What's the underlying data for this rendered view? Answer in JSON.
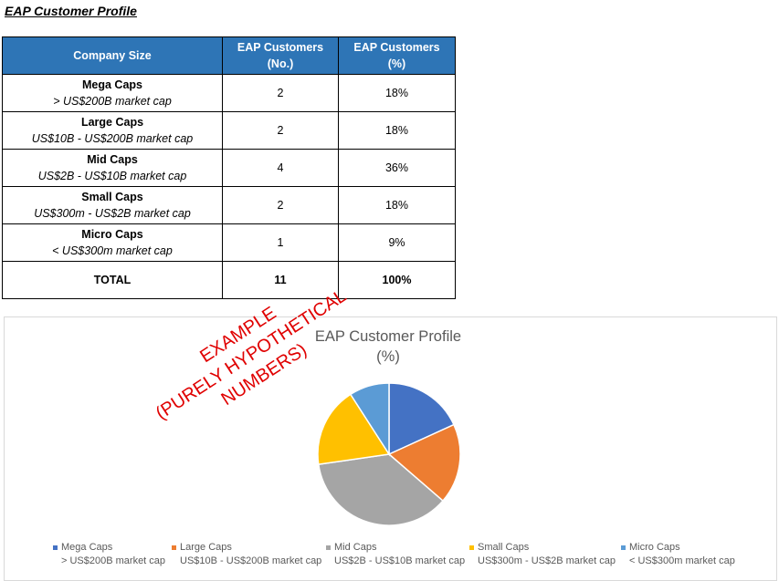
{
  "page_title": "EAP Customer Profile",
  "table": {
    "headers": {
      "size": "Company Size",
      "no_line1": "EAP Customers",
      "no_line2": "(No.)",
      "pct_line1": "EAP Customers",
      "pct_line2": "(%)"
    },
    "rows": [
      {
        "name": "Mega Caps",
        "desc": "> US$200B market cap",
        "count": "2",
        "pct": "18%"
      },
      {
        "name": "Large Caps",
        "desc": "US$10B - US$200B market cap",
        "count": "2",
        "pct": "18%"
      },
      {
        "name": "Mid Caps",
        "desc": "US$2B - US$10B market cap",
        "count": "4",
        "pct": "36%"
      },
      {
        "name": "Small Caps",
        "desc": "US$300m - US$2B market cap",
        "count": "2",
        "pct": "18%"
      },
      {
        "name": "Micro Caps",
        "desc": "< US$300m market cap",
        "count": "1",
        "pct": "9%"
      }
    ],
    "total": {
      "label": "TOTAL",
      "count": "11",
      "pct": "100%"
    }
  },
  "watermark": {
    "line1": "EXAMPLE",
    "line2": "(PURELY HYPOTHETICAL NUMBERS)"
  },
  "chart_data": {
    "type": "pie",
    "title": "EAP Customer Profile",
    "subtitle": "(%)",
    "categories": [
      "Mega Caps",
      "Large Caps",
      "Mid Caps",
      "Small Caps",
      "Micro Caps"
    ],
    "category_subtitles": [
      "> US$200B market cap",
      "US$10B - US$200B market cap",
      "US$2B - US$10B market cap",
      "US$300m - US$2B market cap",
      "< US$300m market cap"
    ],
    "values": [
      2,
      2,
      4,
      2,
      1
    ],
    "colors": [
      "#4472c4",
      "#ed7d31",
      "#a5a5a5",
      "#ffc000",
      "#5b9bd5"
    ],
    "legend_position": "bottom"
  }
}
